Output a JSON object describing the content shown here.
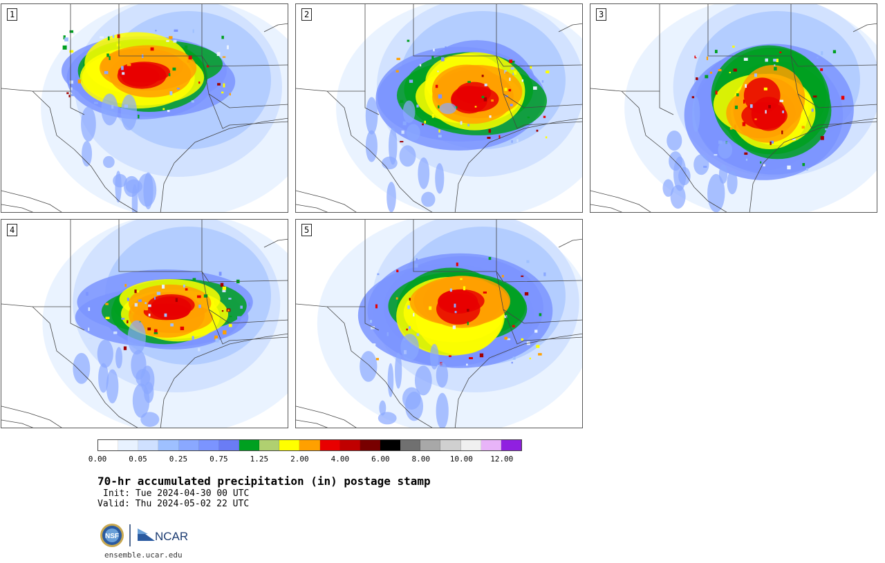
{
  "panels": [
    {
      "label": "1",
      "seed": 11
    },
    {
      "label": "2",
      "seed": 23
    },
    {
      "label": "3",
      "seed": 37
    },
    {
      "label": "4",
      "seed": 41
    },
    {
      "label": "5",
      "seed": 59
    }
  ],
  "colorbar": {
    "colors": [
      "#ffffff",
      "#e8f2ff",
      "#cfe0ff",
      "#9ec0ff",
      "#8aa8ff",
      "#7b94ff",
      "#6a7cf5",
      "#00a020",
      "#b0d070",
      "#ffff00",
      "#ffa000",
      "#e80000",
      "#c00000",
      "#780000",
      "#000000",
      "#707070",
      "#a8a8a8",
      "#d0d0d0",
      "#f0f0f0",
      "#e8b4f8",
      "#9020e0"
    ],
    "tick_labels": [
      "0.00",
      "0.05",
      "0.25",
      "0.75",
      "1.25",
      "2.00",
      "4.00",
      "6.00",
      "8.00",
      "10.00",
      "12.00"
    ]
  },
  "title": "70-hr accumulated precipitation (in) postage stamp",
  "init": "Init: Tue 2024-04-30 00 UTC",
  "valid": "Valid: Thu 2024-05-02 22 UTC",
  "logos": {
    "nsf": "NSF",
    "ncar": "NCAR"
  },
  "site": "ensemble.ucar.edu"
}
